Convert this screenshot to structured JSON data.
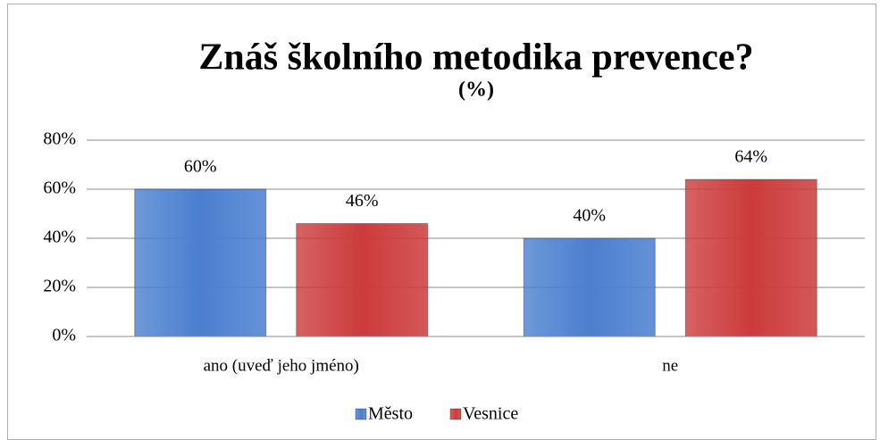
{
  "chart_data": {
    "type": "bar",
    "title": "Znáš školního metodika prevence?",
    "subtitle": "(%)",
    "categories": [
      "ano (uveď jeho jméno)",
      "ne"
    ],
    "series": [
      {
        "name": "Město",
        "color": "#4a7fcf",
        "values": [
          60,
          40
        ],
        "value_labels": [
          "60%",
          "40%"
        ]
      },
      {
        "name": "Vesnice",
        "color": "#cc3b3b",
        "values": [
          46,
          64
        ],
        "value_labels": [
          "46%",
          "64%"
        ]
      }
    ],
    "ylim": [
      0,
      80
    ],
    "yticks": [
      {
        "value": 0,
        "label": "0%"
      },
      {
        "value": 20,
        "label": "20%"
      },
      {
        "value": 40,
        "label": "40%"
      },
      {
        "value": 60,
        "label": "60%"
      },
      {
        "value": 80,
        "label": "80%"
      }
    ],
    "grid": true,
    "legend": "bottom"
  }
}
